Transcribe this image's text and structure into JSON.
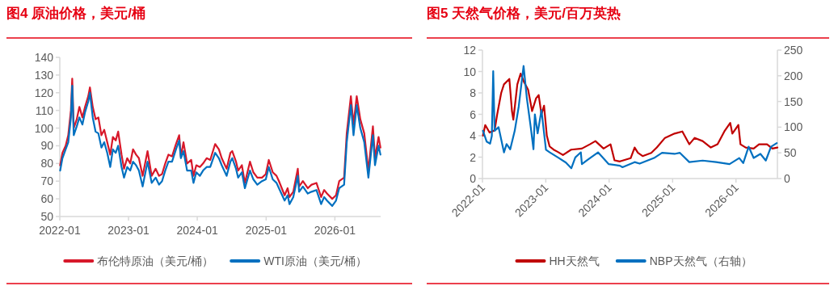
{
  "chart_data": [
    {
      "type": "line",
      "title": "图4 原油价格，美元/桶",
      "legend": "bottom",
      "x": [
        "2022-01-03",
        "2022-01-15",
        "2022-02-01",
        "2022-02-15",
        "2022-03-01",
        "2022-03-08",
        "2022-03-16",
        "2022-04-01",
        "2022-04-15",
        "2022-05-01",
        "2022-05-15",
        "2022-06-01",
        "2022-06-10",
        "2022-06-25",
        "2022-07-10",
        "2022-07-25",
        "2022-08-10",
        "2022-08-25",
        "2022-09-10",
        "2022-09-26",
        "2022-10-10",
        "2022-10-25",
        "2022-11-07",
        "2022-11-25",
        "2022-12-08",
        "2022-12-25",
        "2023-01-10",
        "2023-01-25",
        "2023-02-10",
        "2023-02-25",
        "2023-03-17",
        "2023-04-12",
        "2023-05-04",
        "2023-05-25",
        "2023-06-12",
        "2023-06-28",
        "2023-07-15",
        "2023-08-01",
        "2023-08-20",
        "2023-09-10",
        "2023-09-27",
        "2023-10-06",
        "2023-10-20",
        "2023-11-08",
        "2023-11-30",
        "2023-12-12",
        "2023-12-27",
        "2024-01-15",
        "2024-02-01",
        "2024-02-20",
        "2024-03-10",
        "2024-04-05",
        "2024-04-25",
        "2024-05-10",
        "2024-06-05",
        "2024-06-25",
        "2024-07-05",
        "2024-07-25",
        "2024-08-05",
        "2024-08-25",
        "2024-09-10",
        "2024-10-07",
        "2024-10-25",
        "2024-11-15",
        "2024-12-10",
        "2024-12-30",
        "2025-01-15",
        "2025-02-05",
        "2025-02-25",
        "2025-03-10",
        "2025-04-09",
        "2025-04-25",
        "2025-05-05",
        "2025-05-25",
        "2025-06-18",
        "2025-06-25",
        "2025-07-15",
        "2025-08-10",
        "2025-08-30",
        "2025-09-25",
        "2025-10-20",
        "2025-11-05",
        "2025-11-20",
        "2025-12-18",
        "2026-01-07",
        "2026-01-24",
        "2026-02-19",
        "2026-03-05",
        "2026-03-27",
        "2026-04-10",
        "2026-04-27",
        "2026-05-16",
        "2026-06-06",
        "2026-06-28",
        "2026-07-22",
        "2026-08-02",
        "2026-08-21",
        "2026-08-31"
      ],
      "xlim": [
        "2022-01-01",
        "2026-09-01"
      ],
      "xticks": [
        "2022-01",
        "2023-01",
        "2024-01",
        "2025-01",
        "2026-01"
      ],
      "ylim": [
        50,
        140
      ],
      "yticks": [
        50,
        60,
        70,
        80,
        90,
        100,
        110,
        120,
        130,
        140
      ],
      "series": [
        {
          "name": "布伦特原油（美元/桶）",
          "color": "#d7182a",
          "values": [
            79,
            86,
            90,
            96,
            110,
            128,
            100,
            105,
            112,
            106,
            112,
            118,
            123,
            112,
            105,
            106,
            96,
            99,
            92,
            85,
            95,
            93,
            98,
            85,
            77,
            83,
            80,
            88,
            85,
            83,
            73,
            87,
            73,
            77,
            73,
            74,
            80,
            85,
            84,
            91,
            96,
            84,
            92,
            80,
            82,
            73,
            79,
            78,
            80,
            83,
            82,
            91,
            88,
            83,
            77,
            86,
            87,
            81,
            76,
            79,
            69,
            81,
            75,
            72,
            72,
            74,
            82,
            75,
            73,
            70,
            62,
            66,
            61,
            64,
            77,
            67,
            70,
            66,
            68,
            69,
            61,
            65,
            63,
            60,
            62,
            70,
            72,
            97,
            118,
            102,
            118,
            105,
            97,
            76,
            101,
            83,
            95,
            89
          ]
        },
        {
          "name": "WTI原油（美元/桶）",
          "color": "#0070c0",
          "values": [
            76,
            83,
            88,
            92,
            106,
            124,
            96,
            101,
            106,
            102,
            109,
            115,
            120,
            106,
            98,
            97,
            89,
            92,
            86,
            78,
            88,
            86,
            90,
            78,
            72,
            78,
            76,
            81,
            79,
            76,
            67,
            81,
            69,
            72,
            68,
            70,
            76,
            81,
            81,
            88,
            93,
            83,
            87,
            76,
            76,
            69,
            75,
            73,
            76,
            78,
            78,
            86,
            83,
            79,
            73,
            81,
            83,
            77,
            72,
            75,
            66,
            76,
            71,
            68,
            70,
            71,
            78,
            71,
            69,
            66,
            59,
            62,
            57,
            61,
            73,
            64,
            67,
            63,
            64,
            65,
            57,
            61,
            59,
            56,
            59,
            66,
            68,
            92,
            113,
            96,
            113,
            100,
            92,
            72,
            96,
            79,
            90,
            85
          ]
        }
      ]
    },
    {
      "type": "line",
      "title": "图5 天然气价格，美元/百万英热",
      "legend": "bottom",
      "xlim": [
        "2022-01-01",
        "2026-08-28"
      ],
      "xticks": [
        "2022-01",
        "2023-01",
        "2024-01",
        "2025-01",
        "2026-01"
      ],
      "ylim": [
        0,
        12
      ],
      "yticks": [
        0,
        2,
        4,
        6,
        8,
        10,
        12
      ],
      "y2lim": [
        0,
        250
      ],
      "y2ticks": [
        0,
        50,
        100,
        150,
        200,
        250
      ],
      "series": [
        {
          "name": "HH天然气",
          "color": "#c00000",
          "x": [
            "2022-01-04",
            "2022-01-17",
            "2022-02-11",
            "2022-03-12",
            "2022-03-27",
            "2022-04-19",
            "2022-05-05",
            "2022-06-05",
            "2022-06-20",
            "2022-06-28",
            "2022-07-21",
            "2022-08-09",
            "2022-08-29",
            "2022-09-21",
            "2022-10-14",
            "2022-11-06",
            "2022-11-21",
            "2022-12-07",
            "2022-12-22",
            "2023-01-07",
            "2023-01-23",
            "2023-02-15",
            "2023-03-10",
            "2023-04-10",
            "2023-05-27",
            "2023-07-28",
            "2023-09-12",
            "2023-10-14",
            "2023-11-30",
            "2024-01-09",
            "2024-02-01",
            "2024-03-03",
            "2024-05-04",
            "2024-05-27",
            "2024-06-15",
            "2024-07-12",
            "2024-08-31",
            "2024-10-02",
            "2024-11-18",
            "2025-01-12",
            "2025-02-26",
            "2025-04-07",
            "2025-05-08",
            "2025-06-23",
            "2025-08-09",
            "2025-09-17",
            "2025-10-26",
            "2025-11-29",
            "2025-12-11",
            "2026-01-15",
            "2026-01-27",
            "2026-02-26",
            "2026-04-13",
            "2026-05-14",
            "2026-06-29",
            "2026-07-30",
            "2026-08-28"
          ],
          "values": [
            4.0,
            5.0,
            4.3,
            4.5,
            6.0,
            8.0,
            8.8,
            9.3,
            6.3,
            5.5,
            8.8,
            9.8,
            9.0,
            8.3,
            6.3,
            7.5,
            7.8,
            6.0,
            6.8,
            4.0,
            3.0,
            2.7,
            2.5,
            2.2,
            2.7,
            2.8,
            3.2,
            3.5,
            2.8,
            3.2,
            1.7,
            1.6,
            1.9,
            2.9,
            2.4,
            2.1,
            2.4,
            2.9,
            3.8,
            4.2,
            4.4,
            3.2,
            3.8,
            3.5,
            2.9,
            3.2,
            4.4,
            5.2,
            4.2,
            5.0,
            3.2,
            2.9,
            2.8,
            3.2,
            3.2,
            2.8,
            2.9
          ]
        },
        {
          "name": "NBP天然气（右轴）",
          "color": "#0070c0",
          "axis": "y2",
          "x": [
            "2022-01-04",
            "2022-01-25",
            "2022-02-14",
            "2022-02-24",
            "2022-03-04",
            "2022-03-12",
            "2022-04-04",
            "2022-05-05",
            "2022-05-20",
            "2022-06-10",
            "2022-07-06",
            "2022-07-29",
            "2022-08-26",
            "2022-09-14",
            "2022-10-07",
            "2022-10-22",
            "2022-10-30",
            "2022-11-15",
            "2022-12-07",
            "2023-01-02",
            "2023-01-24",
            "2023-03-12",
            "2023-04-27",
            "2023-05-28",
            "2023-06-20",
            "2023-07-22",
            "2023-07-28",
            "2023-08-28",
            "2023-10-29",
            "2023-12-30",
            "2024-03-03",
            "2024-03-18",
            "2024-05-27",
            "2024-06-25",
            "2024-09-16",
            "2024-11-01",
            "2025-01-12",
            "2025-02-12",
            "2025-04-07",
            "2025-06-23",
            "2025-09-09",
            "2025-11-25",
            "2026-01-20",
            "2026-02-12",
            "2026-03-15",
            "2026-04-13",
            "2026-05-22",
            "2026-06-22",
            "2026-07-22",
            "2026-08-24"
          ],
          "values": [
            93,
            72,
            68,
            83,
            209,
            93,
            100,
            51,
            67,
            57,
            93,
            140,
            219,
            156,
            98,
            57,
            125,
            88,
            133,
            56,
            51,
            41,
            31,
            20,
            41,
            51,
            28,
            36,
            51,
            28,
            25,
            22,
            32,
            29,
            40,
            50,
            48,
            50,
            32,
            35,
            32,
            28,
            40,
            30,
            62,
            40,
            48,
            35,
            62,
            69
          ]
        }
      ]
    }
  ]
}
